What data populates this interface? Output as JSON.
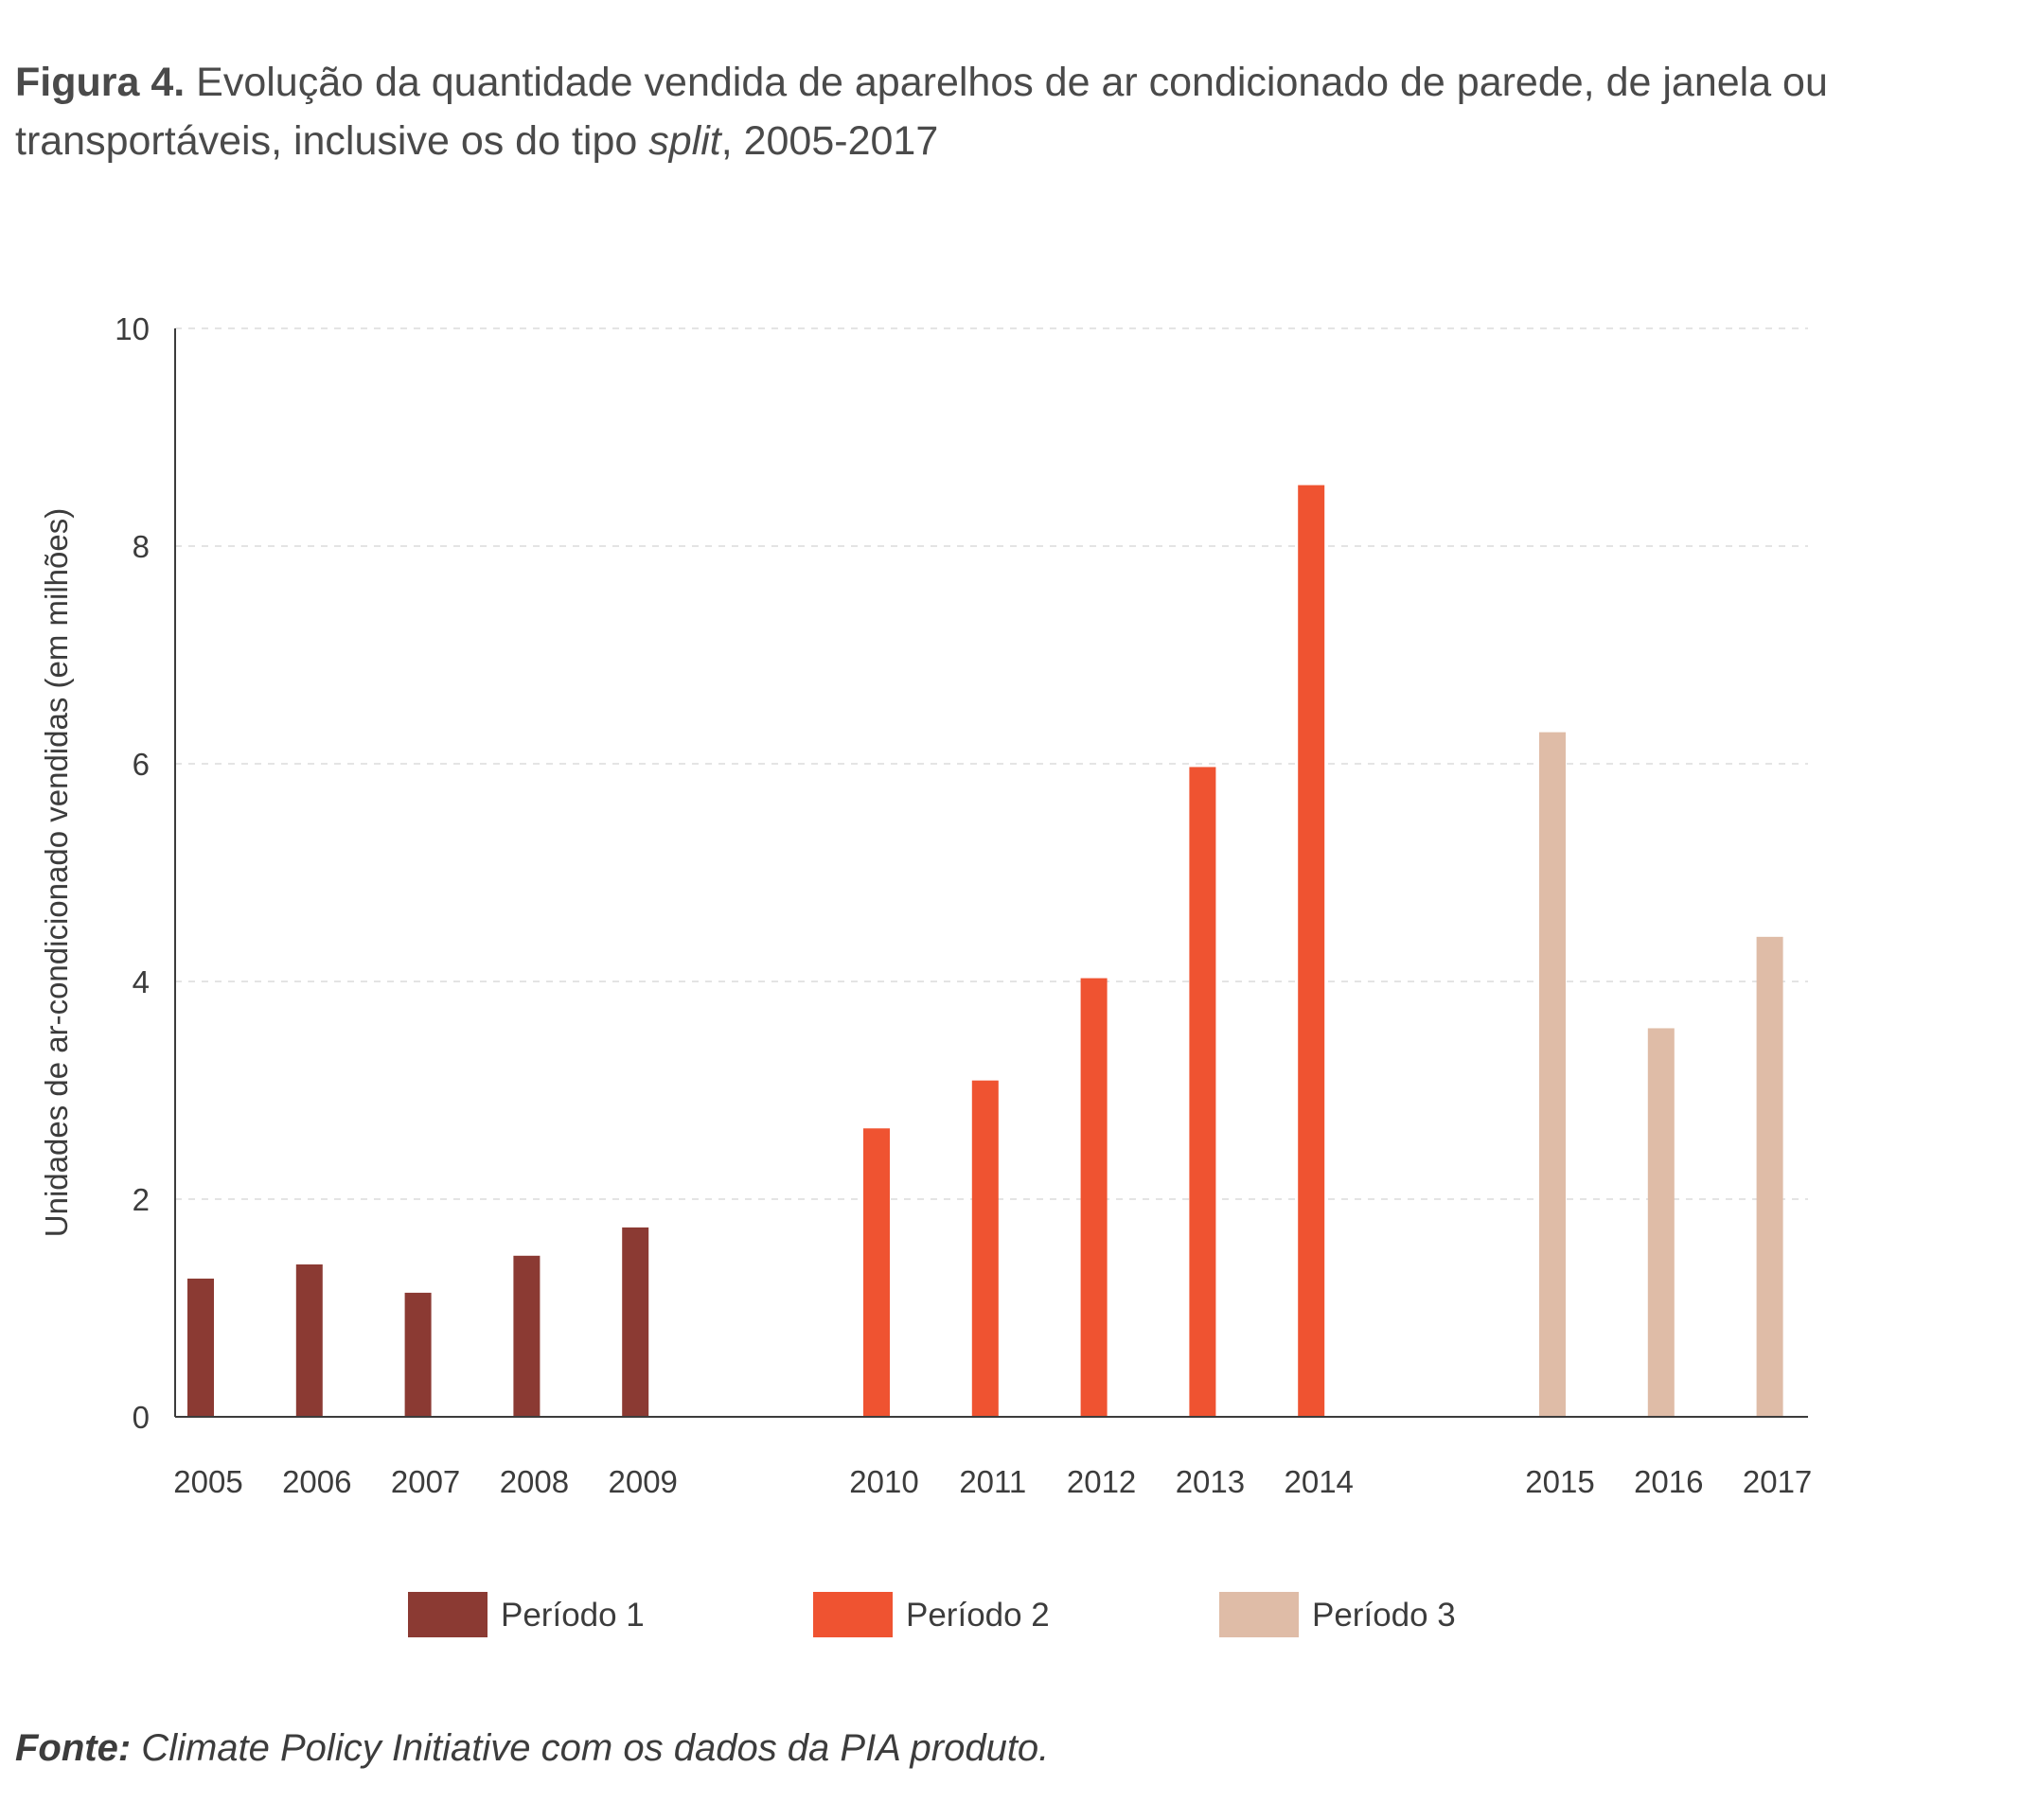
{
  "figure": {
    "label": "Figura 4.",
    "title_part1": " Evolução da quantidade vendida de aparelhos de ar condicionado de parede, de janela ou transportáveis, inclusive os do tipo ",
    "title_italic": "split",
    "title_part2": ", 2005-2017"
  },
  "source": {
    "label": "Fonte:",
    "text": " Climate Policy Initiative com os dados da PIA produto."
  },
  "chart_data": {
    "type": "bar",
    "title": "",
    "xlabel": "",
    "ylabel": "Unidades de ar-condicionado vendidas (em milhões)",
    "ylim": [
      0,
      10
    ],
    "yticks": [
      "0",
      "2",
      "4",
      "6",
      "8",
      "10"
    ],
    "grid": "horizontal dashed",
    "legend_position": "bottom",
    "series": [
      {
        "name": "Período 1",
        "color": "#8b3a33",
        "categories": [
          "2005",
          "2006",
          "2007",
          "2008",
          "2009"
        ],
        "values": [
          1.27,
          1.4,
          1.14,
          1.48,
          1.74
        ]
      },
      {
        "name": "Período 2",
        "color": "#ef5331",
        "categories": [
          "2010",
          "2011",
          "2012",
          "2013",
          "2014"
        ],
        "values": [
          2.65,
          3.09,
          4.03,
          5.97,
          8.56
        ]
      },
      {
        "name": "Período 3",
        "color": "#dfbca7",
        "categories": [
          "2015",
          "2016",
          "2017"
        ],
        "values": [
          6.29,
          3.57,
          4.41
        ]
      }
    ]
  }
}
